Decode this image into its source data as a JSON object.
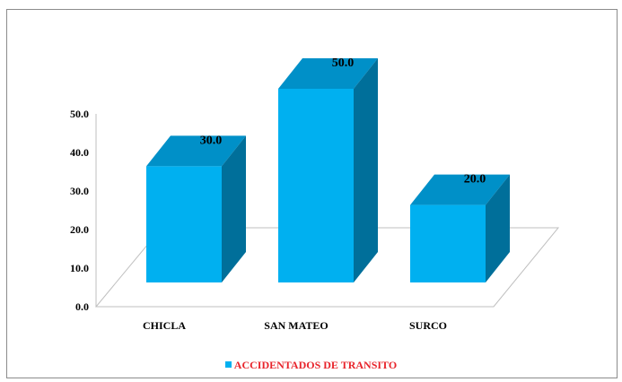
{
  "chart_data": {
    "type": "bar",
    "categories": [
      "CHICLA",
      "SAN MATEO",
      "SURCO"
    ],
    "series": [
      {
        "name": "ACCIDENTADOS DE TRANSITO",
        "values": [
          30.0,
          50.0,
          20.0
        ],
        "value_labels": [
          "30.0",
          "50.0",
          "20.0"
        ]
      }
    ],
    "yticks": [
      "0.0",
      "10.0",
      "20.0",
      "30.0",
      "40.0",
      "50.0"
    ],
    "ylim": [
      0,
      50
    ],
    "legend_position": "bottom",
    "colors": {
      "bar_front": "#00b0f0",
      "bar_top": "#0090c8",
      "bar_side": "#006f9a",
      "legend_text": "#e8242b"
    },
    "style": "3d-column"
  }
}
